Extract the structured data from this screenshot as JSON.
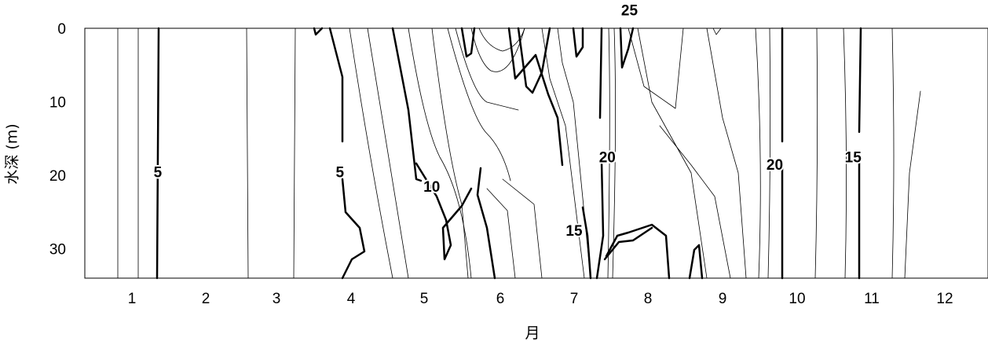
{
  "chart_data": {
    "type": "contour",
    "xlabel": "月",
    "ylabel": "水深 (m)",
    "x_ticks": [
      "1",
      "2",
      "3",
      "4",
      "5",
      "6",
      "7",
      "8",
      "9",
      "10",
      "11",
      "12"
    ],
    "y_ticks": [
      0,
      10,
      20,
      30
    ],
    "ylim": [
      0,
      34
    ],
    "y_inverted": true,
    "contour_labels": [
      {
        "label": "5",
        "month": 1.35,
        "depth": 19.5
      },
      {
        "label": "5",
        "month": 3.85,
        "depth": 19.5
      },
      {
        "label": "10",
        "month": 5.1,
        "depth": 21.5
      },
      {
        "label": "15",
        "month": 7.0,
        "depth": 27.5
      },
      {
        "label": "20",
        "month": 7.45,
        "depth": 17.5
      },
      {
        "label": "25",
        "month": 7.75,
        "depth": -2.5
      },
      {
        "label": "20",
        "month": 9.7,
        "depth": 18.5
      },
      {
        "label": "15",
        "month": 10.75,
        "depth": 17.5
      }
    ]
  }
}
